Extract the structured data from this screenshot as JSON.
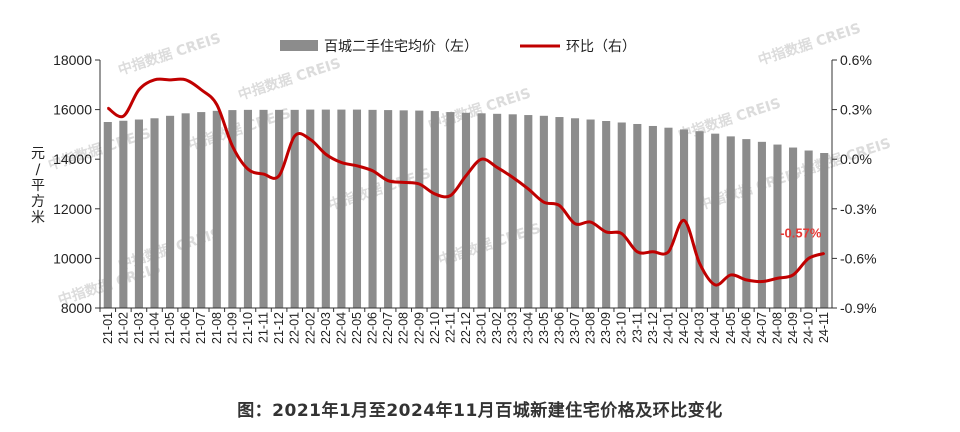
{
  "caption": "图：2021年1月至2024年11月百城新建住宅价格及环比变化",
  "watermark": "中指数据 CREIS",
  "chart_data": {
    "type": "bar+line",
    "title": "",
    "left_axis": {
      "label": "元/平方米",
      "ticks": [
        "18000",
        "16000",
        "14000",
        "12000",
        "10000",
        "8000"
      ],
      "ylim": [
        8000,
        18000
      ]
    },
    "right_axis": {
      "ticks": [
        "0.6%",
        "0.3%",
        "0.0%",
        "-0.3%",
        "-0.6%",
        "-0.9%"
      ],
      "ylim": [
        -0.9,
        0.6
      ]
    },
    "categories": [
      "21-01",
      "21-02",
      "21-03",
      "21-04",
      "21-05",
      "21-06",
      "21-07",
      "21-08",
      "21-09",
      "21-10",
      "21-11",
      "21-12",
      "22-01",
      "22-02",
      "22-03",
      "22-04",
      "22-05",
      "22-06",
      "22-07",
      "22-08",
      "22-09",
      "22-10",
      "22-11",
      "22-12",
      "23-01",
      "23-02",
      "23-03",
      "23-04",
      "23-05",
      "23-06",
      "23-07",
      "23-08",
      "23-09",
      "23-10",
      "23-11",
      "23-12",
      "24-01",
      "24-02",
      "24-03",
      "24-04",
      "24-05",
      "24-06",
      "24-07",
      "24-08",
      "24-09",
      "24-10",
      "24-11"
    ],
    "series": [
      {
        "name": "百城二手住宅均价（左）",
        "type": "bar",
        "axis": "left",
        "color": "#8c8c8c",
        "values": [
          15500,
          15550,
          15600,
          15650,
          15750,
          15850,
          15900,
          15950,
          15980,
          15990,
          15990,
          15990,
          15990,
          16000,
          16000,
          16000,
          16000,
          15990,
          15980,
          15970,
          15960,
          15940,
          15900,
          15870,
          15850,
          15830,
          15810,
          15780,
          15750,
          15700,
          15650,
          15600,
          15540,
          15480,
          15420,
          15340,
          15270,
          15200,
          15130,
          15030,
          14920,
          14810,
          14700,
          14590,
          14470,
          14350,
          14250
        ]
      },
      {
        "name": "环比（右）",
        "type": "line",
        "axis": "right",
        "color": "#c00000",
        "values": [
          0.31,
          0.26,
          0.42,
          0.48,
          0.48,
          0.48,
          0.42,
          0.33,
          0.08,
          -0.06,
          -0.09,
          -0.1,
          0.14,
          0.12,
          0.03,
          -0.02,
          -0.04,
          -0.07,
          -0.13,
          -0.14,
          -0.15,
          -0.21,
          -0.22,
          -0.1,
          0.0,
          -0.05,
          -0.11,
          -0.18,
          -0.26,
          -0.28,
          -0.39,
          -0.38,
          -0.44,
          -0.45,
          -0.56,
          -0.56,
          -0.56,
          -0.37,
          -0.63,
          -0.76,
          -0.7,
          -0.73,
          -0.74,
          -0.72,
          -0.7,
          -0.6,
          -0.57
        ]
      }
    ],
    "annotation": {
      "text": "-0.57%",
      "color": "#e53935"
    },
    "legend": {
      "position": "top-center",
      "items": [
        "百城二手住宅均价（左）",
        "环比（右）"
      ]
    },
    "grid": false
  }
}
